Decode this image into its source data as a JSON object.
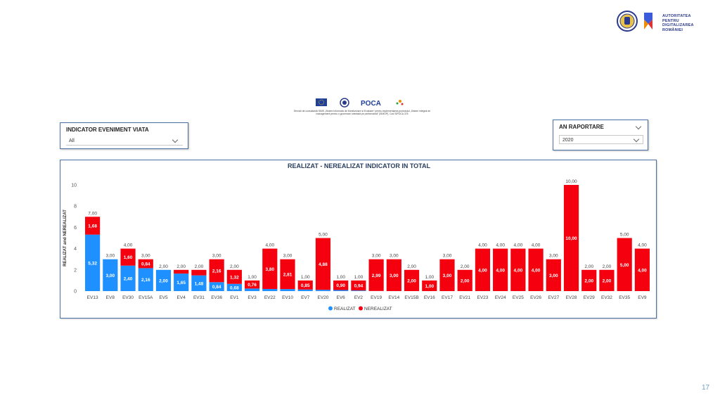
{
  "header": {
    "org_lines": [
      "AUTORITATEA",
      "PENTRU",
      "DIGITALIZAREA",
      "ROMÂNIEI"
    ],
    "poca_text": "POCA"
  },
  "caption": {
    "lines": [
      "Servicii de consultanță SMIS „Sistem Informatic de Monitorizare și Evaluare” pentru implementarea proiectului „Sistem integrat de",
      "management pentru o guvernare orientată pe performanță” (SIMOP), Cod SIPOCA 375"
    ]
  },
  "filters": {
    "indicator": {
      "label": "INDICATOR EVENIMENT VIATA",
      "value": "All"
    },
    "year": {
      "label": "AN RAPORTARE",
      "value": "2020"
    }
  },
  "colors": {
    "realizat": "#1e90ff",
    "nerealizat": "#f5000f",
    "frame": "#4a6fa5"
  },
  "chart_data": {
    "type": "bar",
    "stacked": true,
    "title": "REALIZAT - NEREALIZAT INDICATOR IN TOTAL",
    "ylabel": "REALIZAT and NEREALIZAT",
    "xlabel": "",
    "ylim": [
      0,
      10
    ],
    "yticks": [
      0,
      2,
      4,
      6,
      8,
      10
    ],
    "legend_position": "bottom-center",
    "categories": [
      "EV13",
      "EV8",
      "EV30",
      "EV15A",
      "EV5",
      "EV4",
      "EV31",
      "EV36",
      "EV1",
      "EV3",
      "EV22",
      "EV10",
      "EV7",
      "EV20",
      "EV6",
      "EV2",
      "EV19",
      "EV14",
      "EV15B",
      "EV16",
      "EV17",
      "EV21",
      "EV23",
      "EV24",
      "EV25",
      "EV26",
      "EV27",
      "EV28",
      "EV29",
      "EV32",
      "EV35",
      "EV9"
    ],
    "series": [
      {
        "name": "REALIZAT",
        "values": [
          5.32,
          3.0,
          2.4,
          2.16,
          2.0,
          1.65,
          1.48,
          0.84,
          0.68,
          0.24,
          0.2,
          0.19,
          0.15,
          0.12,
          0.1,
          0.06,
          0.01,
          0,
          0,
          0,
          0,
          0,
          0,
          0,
          0,
          0,
          0,
          0,
          0,
          0,
          0,
          0
        ]
      },
      {
        "name": "NEREALIZAT",
        "values": [
          1.68,
          0,
          1.6,
          0.84,
          0,
          0.35,
          0.52,
          2.16,
          1.32,
          0.76,
          3.8,
          2.81,
          0.85,
          4.88,
          0.9,
          0.94,
          2.99,
          3.0,
          2.0,
          1.0,
          3.0,
          2.0,
          4.0,
          4.0,
          4.0,
          4.0,
          3.0,
          10.0,
          2.0,
          2.0,
          5.0,
          4.0
        ]
      }
    ],
    "bar_labels_realizat": [
      "5,32",
      "3,00",
      "2,40",
      "2,16",
      "2,00",
      "1,65",
      "1,48",
      "0,84",
      "0,68",
      "",
      "",
      "",
      "",
      "",
      "",
      "",
      "",
      "",
      "",
      "",
      "",
      "",
      "",
      "",
      "",
      "",
      "",
      "",
      "",
      "",
      "",
      ""
    ],
    "bar_labels_nerealizat": [
      "1,68",
      "",
      "1,60",
      "0,84",
      "",
      "",
      "",
      "2,16",
      "1,32",
      "0,76",
      "3,80",
      "2,81",
      "0,85",
      "4,88",
      "0,90",
      "0,94",
      "2,99",
      "3,00",
      "2,00",
      "1,00",
      "3,00",
      "2,00",
      "4,00",
      "4,00",
      "4,00",
      "4,00",
      "3,00",
      "10,00",
      "2,00",
      "2,00",
      "5,00",
      "4,00"
    ],
    "total_labels": [
      "7,00",
      "3,00",
      "4,00",
      "3,00",
      "2,00",
      "2,00",
      "2,00",
      "3,00",
      "2,00",
      "1,00",
      "4,00",
      "3,00",
      "1,00",
      "5,00",
      "1,00",
      "1,00",
      "3,00",
      "3,00",
      "2,00",
      "1,00",
      "3,00",
      "2,00",
      "4,00",
      "4,00",
      "4,00",
      "4,00",
      "3,00",
      "10,00",
      "2,00",
      "2,00",
      "5,00",
      "4,00"
    ]
  },
  "page_number": "17"
}
